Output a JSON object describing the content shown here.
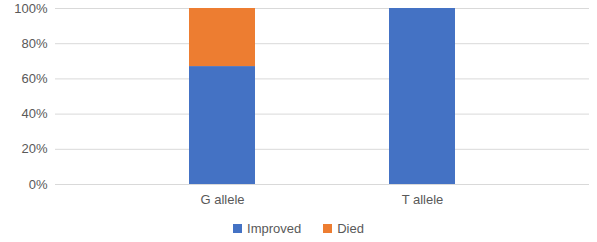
{
  "chart_data": {
    "type": "bar",
    "stacked": true,
    "categories": [
      "G allele",
      "T allele"
    ],
    "series": [
      {
        "name": "Improved",
        "color": "#4472c4",
        "values": [
          67,
          100
        ]
      },
      {
        "name": "Died",
        "color": "#ed7d31",
        "values": [
          33,
          0
        ]
      }
    ],
    "ylim": [
      0,
      100
    ],
    "yticks": [
      {
        "value": 0,
        "label": "0%"
      },
      {
        "value": 20,
        "label": "20%"
      },
      {
        "value": 40,
        "label": "40%"
      },
      {
        "value": 60,
        "label": "60%"
      },
      {
        "value": 80,
        "label": "80%"
      },
      {
        "value": 100,
        "label": "100%"
      }
    ],
    "grid": true,
    "legend": "bottom"
  }
}
